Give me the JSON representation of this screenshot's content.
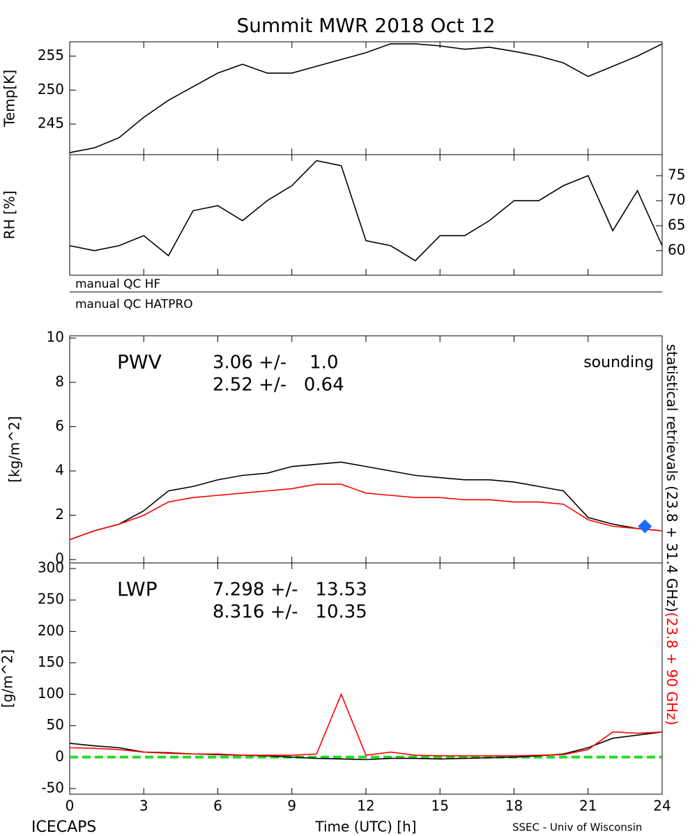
{
  "chart_data": [
    {
      "type": "line",
      "title": "Summit MWR 2018 Oct 12",
      "ylabel": "Temp[K]",
      "yaxis_side": "left",
      "x": [
        0,
        1,
        2,
        3,
        4,
        5,
        6,
        7,
        8,
        9,
        10,
        11,
        12,
        13,
        14,
        15,
        16,
        17,
        18,
        19,
        20,
        21,
        22,
        23,
        24
      ],
      "xlim": [
        0,
        24
      ],
      "xticks": [
        0,
        3,
        6,
        9,
        12,
        15,
        18,
        21,
        24
      ],
      "ylim": [
        240.5,
        257.1
      ],
      "yticks": [
        245,
        250,
        255
      ],
      "series": [
        {
          "color": "#000000",
          "values": [
            240.8,
            241.5,
            243,
            246,
            248.5,
            250.5,
            252.5,
            253.8,
            252.5,
            252.5,
            253.5,
            254.5,
            255.5,
            256.8,
            256.8,
            256.5,
            256,
            256.3,
            255.7,
            255,
            254,
            252,
            253.5,
            255,
            256.8
          ]
        }
      ]
    },
    {
      "type": "line",
      "ylabel": "RH [%]",
      "yaxis_side": "right",
      "x": [
        0,
        1,
        2,
        3,
        4,
        5,
        6,
        7,
        8,
        9,
        10,
        11,
        12,
        13,
        14,
        15,
        16,
        17,
        18,
        19,
        20,
        21,
        22,
        23,
        24
      ],
      "xlim": [
        0,
        24
      ],
      "xticks": [
        0,
        3,
        6,
        9,
        12,
        15,
        18,
        21,
        24
      ],
      "ylim": [
        55.1,
        79.2
      ],
      "yticks": [
        60,
        65,
        70,
        75
      ],
      "series": [
        {
          "color": "#000000",
          "values": [
            61,
            60,
            61,
            63,
            59,
            68,
            69,
            66,
            70,
            73,
            78,
            77,
            62,
            61,
            58,
            63,
            63,
            66,
            70,
            70,
            73,
            75,
            64,
            72,
            61
          ]
        }
      ]
    },
    {
      "type": "line",
      "label": "PWV",
      "ylabel": "[kg/m^2]",
      "yaxis_side": "left",
      "stats": [
        {
          "text": "3.06 +/-    1.0",
          "color": "#000000"
        },
        {
          "text": "2.52 +/-   0.64",
          "color": "#ff0000"
        }
      ],
      "x": [
        0,
        1,
        2,
        3,
        4,
        5,
        6,
        7,
        8,
        9,
        10,
        11,
        12,
        13,
        14,
        15,
        16,
        17,
        18,
        19,
        20,
        21,
        22,
        23,
        24
      ],
      "xlim": [
        0,
        24
      ],
      "xticks": [
        0,
        3,
        6,
        9,
        12,
        15,
        18,
        21,
        24
      ],
      "ylim": [
        -0.15,
        10.1
      ],
      "yticks": [
        0,
        2,
        4,
        6,
        8,
        10
      ],
      "series": [
        {
          "color": "#000000",
          "values": [
            0.9,
            1.3,
            1.6,
            2.2,
            3.1,
            3.3,
            3.6,
            3.8,
            3.9,
            4.2,
            4.3,
            4.4,
            4.2,
            4,
            3.8,
            3.7,
            3.6,
            3.6,
            3.5,
            3.3,
            3.1,
            1.9,
            1.6,
            1.4,
            1.3
          ]
        },
        {
          "color": "#ff0000",
          "values": [
            0.9,
            1.3,
            1.6,
            2.0,
            2.6,
            2.8,
            2.9,
            3.0,
            3.1,
            3.2,
            3.4,
            3.4,
            3.0,
            2.9,
            2.8,
            2.8,
            2.7,
            2.7,
            2.6,
            2.6,
            2.5,
            1.8,
            1.5,
            1.4,
            1.3
          ]
        },
        {
          "name": "sounding",
          "color": "#1a6dff",
          "marker": "diamond",
          "x": [
            23.3
          ],
          "values": [
            1.5
          ]
        }
      ]
    },
    {
      "type": "line",
      "label": "LWP",
      "ylabel": "[g/m^2]",
      "xlabel": "Time (UTC) [h]",
      "yaxis_side": "left",
      "stats": [
        {
          "text": "7.298 +/-   13.53",
          "color": "#000000"
        },
        {
          "text": "8.316 +/-   10.35",
          "color": "#ff0000"
        }
      ],
      "x": [
        0,
        1,
        2,
        3,
        4,
        5,
        6,
        7,
        8,
        9,
        10,
        11,
        12,
        13,
        14,
        15,
        16,
        17,
        18,
        19,
        20,
        21,
        22,
        23,
        24
      ],
      "xlim": [
        0,
        24
      ],
      "xticks": [
        0,
        3,
        6,
        9,
        12,
        15,
        18,
        21,
        24
      ],
      "ylim": [
        -59,
        309
      ],
      "yticks": [
        -50,
        0,
        50,
        100,
        150,
        200,
        250,
        300
      ],
      "hline": 0,
      "hline_color": "#22dd22",
      "series": [
        {
          "color": "#000000",
          "values": [
            22,
            18,
            15,
            8,
            7,
            5,
            4,
            3,
            2,
            0,
            -2,
            -3,
            -4,
            -2,
            -2,
            -3,
            -2,
            -1,
            0,
            2,
            5,
            15,
            30,
            35,
            40
          ]
        },
        {
          "color": "#ff0000",
          "values": [
            15,
            14,
            12,
            8,
            6,
            5,
            5,
            3,
            3,
            3,
            5,
            100,
            3,
            8,
            3,
            2,
            2,
            2,
            2,
            3,
            4,
            12,
            40,
            38,
            40
          ]
        }
      ]
    }
  ],
  "qc_flags": [
    "manual QC HF",
    "manual QC HATPRO"
  ],
  "side_label": [
    {
      "text": "statistical retrievals (23.8 + 31.4 GHz)",
      "color": "#000000"
    },
    {
      "text": "(23.8 + 90 GHz)",
      "color": "#ff0000"
    }
  ],
  "footer_left": "ICECAPS",
  "footer_right": "SSEC - Univ of Wisconsin"
}
